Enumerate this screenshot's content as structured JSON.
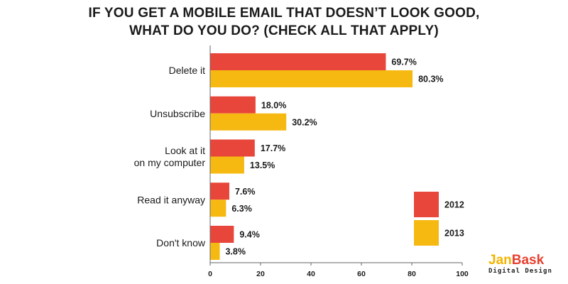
{
  "chart_data": {
    "type": "bar",
    "orientation": "horizontal",
    "title_lines": [
      "IF YOU GET A MOBILE EMAIL THAT DOESN’T LOOK GOOD,",
      "WHAT DO YOU DO? (CHECK ALL THAT APPLY)"
    ],
    "categories": [
      [
        "Delete it"
      ],
      [
        "Unsubscribe"
      ],
      [
        "Look at it",
        "on my computer"
      ],
      [
        "Read it anyway"
      ],
      [
        "Don't know"
      ]
    ],
    "series": [
      {
        "name": "2012",
        "color": "#e8463a",
        "values": [
          69.7,
          18.0,
          17.7,
          7.6,
          9.4
        ],
        "labels": [
          "69.7%",
          "18.0%",
          "17.7%",
          "7.6%",
          "9.4%"
        ]
      },
      {
        "name": "2013",
        "color": "#f6b912",
        "values": [
          80.3,
          30.2,
          13.5,
          6.3,
          3.8
        ],
        "labels": [
          "80.3%",
          "30.2%",
          "13.5%",
          "6.3%",
          "3.8%"
        ]
      }
    ],
    "xlim": [
      0,
      100
    ],
    "xticks": [
      0,
      20,
      40,
      60,
      80,
      100
    ],
    "xtick_labels": [
      "0",
      "20",
      "40",
      "60",
      "80",
      "100"
    ],
    "grid": false,
    "legend_position": "bottom-right"
  },
  "logo": {
    "part1": "Jan",
    "part2": "Bask",
    "tagline": "Digital Design"
  }
}
